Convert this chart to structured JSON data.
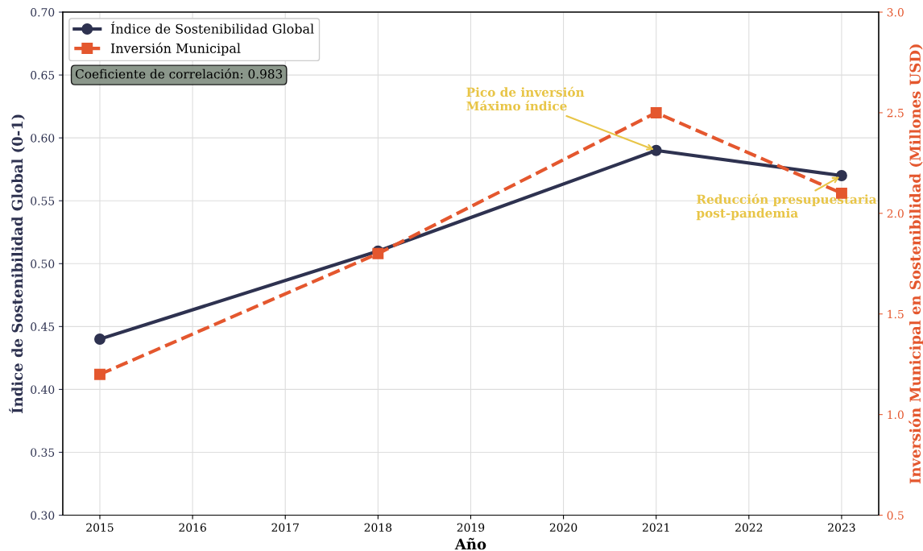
{
  "chart_data": {
    "type": "line",
    "xlabel": "Año",
    "ylabel": "Índice de Sostenibilidad Global (0-1)",
    "y2label": "Inversión Municipal en Sostenibilidad (Millones USD)",
    "x": [
      2015,
      2018,
      2021,
      2023
    ],
    "series": [
      {
        "name": "Índice de Sostenibilidad Global",
        "color": "#2e3250",
        "values": [
          0.44,
          0.51,
          0.59,
          0.57
        ],
        "marker": "circle",
        "line_style": "solid"
      },
      {
        "name": "Inversión Municipal",
        "color": "#e4572e",
        "values": [
          1.2,
          1.8,
          2.5,
          2.1
        ],
        "marker": "square",
        "line_style": "dashed",
        "axis": "y2"
      }
    ],
    "xlim": [
      2014.6,
      2023.4
    ],
    "xticks": [
      2015,
      2016,
      2017,
      2018,
      2019,
      2020,
      2021,
      2022,
      2023
    ],
    "ylim": [
      0.3,
      0.7
    ],
    "yticks": [
      {
        "value": 0.3,
        "label": "0.30"
      },
      {
        "value": 0.35,
        "label": "0.35"
      },
      {
        "value": 0.4,
        "label": "0.40"
      },
      {
        "value": 0.45,
        "label": "0.45"
      },
      {
        "value": 0.5,
        "label": "0.50"
      },
      {
        "value": 0.55,
        "label": "0.55"
      },
      {
        "value": 0.6,
        "label": "0.60"
      },
      {
        "value": 0.65,
        "label": "0.65"
      },
      {
        "value": 0.7,
        "label": "0.70"
      }
    ],
    "y2lim": [
      0.5,
      3.0
    ],
    "y2ticks": [
      0.5,
      {
        "value": 1,
        "label": "1.0"
      },
      1.5,
      {
        "value": 2,
        "label": "2.0"
      },
      2.5,
      {
        "value": 3,
        "label": "3.0"
      }
    ],
    "grid": true,
    "legend": "top left",
    "annotations": [
      {
        "text": "Pico de inversión\nMáximo índice",
        "x": 2021,
        "y": 0.59
      },
      {
        "text": "Reducción presupuestaria\npost-pandemia",
        "x": 2023,
        "y": 0.57
      },
      "Coeficiente de correlación: 0.983"
    ]
  }
}
